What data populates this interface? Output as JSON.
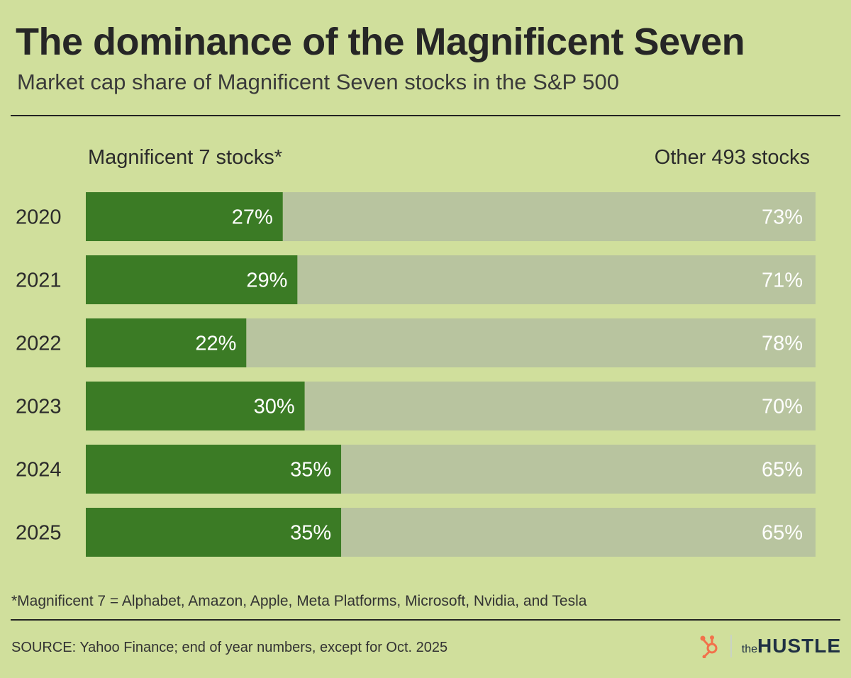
{
  "chart_data": {
    "type": "bar",
    "stacked": true,
    "orientation": "horizontal",
    "title": "The dominance of the Magnificent Seven",
    "subtitle": "Market cap share of Magnificent Seven stocks in the S&P 500",
    "categories": [
      "2020",
      "2021",
      "2022",
      "2023",
      "2024",
      "2025"
    ],
    "series": [
      {
        "name": "Magnificent 7 stocks*",
        "values": [
          27,
          29,
          22,
          30,
          35,
          35
        ],
        "labels": [
          "27%",
          "29%",
          "22%",
          "30%",
          "35%",
          "35%"
        ],
        "color": "#3b7b25"
      },
      {
        "name": "Other 493 stocks",
        "values": [
          73,
          71,
          78,
          70,
          65,
          65
        ],
        "labels": [
          "73%",
          "71%",
          "78%",
          "70%",
          "65%",
          "65%"
        ],
        "color": "#b8c49f"
      }
    ],
    "xlim": [
      0,
      100
    ],
    "grid": false,
    "legend": "top"
  },
  "footnote": "*Magnificent 7 = Alphabet, Amazon, Apple, Meta Platforms, Microsoft, Nvidia, and Tesla",
  "source": "SOURCE: Yahoo Finance; end of year numbers, except for Oct. 2025",
  "logo": {
    "the": "the",
    "name": "HUSTLE"
  },
  "colors": {
    "background": "#d0df9c",
    "hubspot": "#f2714b"
  }
}
